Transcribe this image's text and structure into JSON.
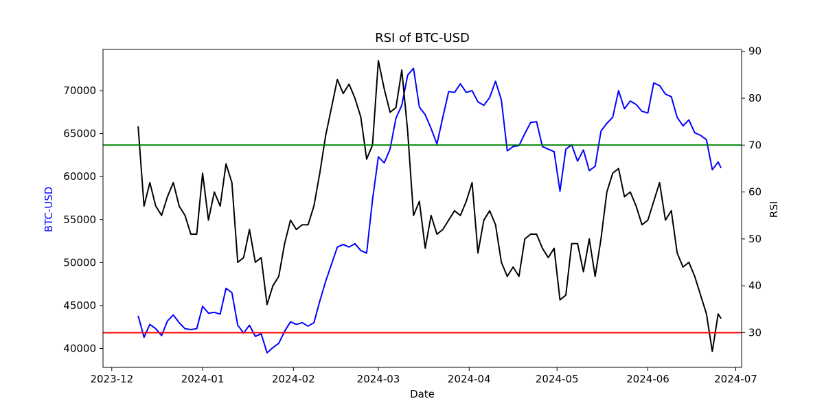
{
  "chart_data": {
    "type": "line",
    "title": "RSI of BTC-USD",
    "xlabel": "Date",
    "ylabel_left": "BTC-USD",
    "ylabel_right": "RSI",
    "x_tick_labels": [
      "2023-12",
      "2024-01",
      "2024-02",
      "2024-03",
      "2024-04",
      "2024-05",
      "2024-06",
      "2024-07"
    ],
    "x_tick_dates": [
      "2023-12-01",
      "2024-01-01",
      "2024-02-01",
      "2024-03-01",
      "2024-04-01",
      "2024-05-01",
      "2024-06-01",
      "2024-07-01"
    ],
    "xlim": [
      "2023-11-28",
      "2024-07-03"
    ],
    "left_ticks": [
      40000,
      45000,
      50000,
      55000,
      60000,
      65000,
      70000
    ],
    "left_ylim": [
      37800,
      74800
    ],
    "right_ticks": [
      30,
      40,
      50,
      60,
      70,
      80,
      90
    ],
    "right_ylim": [
      22.6,
      90.4
    ],
    "reference_lines": [
      {
        "axis": "right",
        "value": 70,
        "color": "#008000"
      },
      {
        "axis": "right",
        "value": 30,
        "color": "#ff0000"
      }
    ],
    "colors": {
      "price": "#0000ff",
      "rsi": "#000000",
      "left_axis_text": "#0000ff"
    },
    "grid": false,
    "series": [
      {
        "axis": "left",
        "color": "#0000ff",
        "dates": [
          "2023-12-10",
          "2023-12-12",
          "2023-12-14",
          "2023-12-16",
          "2023-12-18",
          "2023-12-20",
          "2023-12-22",
          "2023-12-24",
          "2023-12-26",
          "2023-12-28",
          "2023-12-30",
          "2024-01-01",
          "2024-01-03",
          "2024-01-05",
          "2024-01-07",
          "2024-01-09",
          "2024-01-11",
          "2024-01-13",
          "2024-01-15",
          "2024-01-17",
          "2024-01-19",
          "2024-01-21",
          "2024-01-23",
          "2024-01-25",
          "2024-01-27",
          "2024-01-29",
          "2024-01-31",
          "2024-02-02",
          "2024-02-04",
          "2024-02-06",
          "2024-02-08",
          "2024-02-10",
          "2024-02-12",
          "2024-02-14",
          "2024-02-16",
          "2024-02-18",
          "2024-02-20",
          "2024-02-22",
          "2024-02-24",
          "2024-02-26",
          "2024-02-28",
          "2024-03-01",
          "2024-03-03",
          "2024-03-05",
          "2024-03-07",
          "2024-03-09",
          "2024-03-11",
          "2024-03-13",
          "2024-03-15",
          "2024-03-17",
          "2024-03-19",
          "2024-03-21",
          "2024-03-23",
          "2024-03-25",
          "2024-03-27",
          "2024-03-29",
          "2024-03-31",
          "2024-04-02",
          "2024-04-04",
          "2024-04-06",
          "2024-04-08",
          "2024-04-10",
          "2024-04-12",
          "2024-04-14",
          "2024-04-16",
          "2024-04-18",
          "2024-04-20",
          "2024-04-22",
          "2024-04-24",
          "2024-04-26",
          "2024-04-28",
          "2024-04-30",
          "2024-05-02",
          "2024-05-04",
          "2024-05-06",
          "2024-05-08",
          "2024-05-10",
          "2024-05-12",
          "2024-05-14",
          "2024-05-16",
          "2024-05-18",
          "2024-05-20",
          "2024-05-22",
          "2024-05-24",
          "2024-05-26",
          "2024-05-28",
          "2024-05-30",
          "2024-06-01",
          "2024-06-03",
          "2024-06-05",
          "2024-06-07",
          "2024-06-09",
          "2024-06-11",
          "2024-06-13",
          "2024-06-15",
          "2024-06-17",
          "2024-06-19",
          "2024-06-21",
          "2024-06-23",
          "2024-06-25",
          "2024-06-26"
        ],
        "values": [
          43800,
          41300,
          42800,
          42300,
          41500,
          43200,
          43900,
          43000,
          42300,
          42200,
          42300,
          44900,
          44100,
          44200,
          44000,
          47000,
          46500,
          42700,
          41800,
          42700,
          41400,
          41700,
          39500,
          40100,
          40600,
          42000,
          43100,
          42800,
          43000,
          42600,
          43000,
          45500,
          47800,
          49800,
          51800,
          52100,
          51800,
          52200,
          51400,
          51100,
          57300,
          62300,
          61600,
          63200,
          66800,
          68300,
          71800,
          72600,
          68100,
          67200,
          65600,
          63800,
          66900,
          69900,
          69800,
          70800,
          69800,
          70000,
          68700,
          68300,
          69200,
          71100,
          68900,
          63000,
          63500,
          63600,
          65000,
          66300,
          66400,
          63500,
          63200,
          62900,
          58300,
          63200,
          63700,
          61800,
          63100,
          60700,
          61200,
          65300,
          66200,
          66900,
          70000,
          67900,
          68800,
          68400,
          67600,
          67400,
          70900,
          70600,
          69600,
          69300,
          66900,
          65900,
          66600,
          65100,
          64800,
          64300,
          60800,
          61700,
          61000
        ]
      },
      {
        "axis": "right",
        "color": "#000000",
        "dates": [
          "2023-12-10",
          "2023-12-12",
          "2023-12-14",
          "2023-12-16",
          "2023-12-18",
          "2023-12-20",
          "2023-12-22",
          "2023-12-24",
          "2023-12-26",
          "2023-12-28",
          "2023-12-30",
          "2024-01-01",
          "2024-01-03",
          "2024-01-05",
          "2024-01-07",
          "2024-01-09",
          "2024-01-11",
          "2024-01-13",
          "2024-01-15",
          "2024-01-17",
          "2024-01-19",
          "2024-01-21",
          "2024-01-23",
          "2024-01-25",
          "2024-01-27",
          "2024-01-29",
          "2024-01-31",
          "2024-02-02",
          "2024-02-04",
          "2024-02-06",
          "2024-02-08",
          "2024-02-10",
          "2024-02-12",
          "2024-02-14",
          "2024-02-16",
          "2024-02-18",
          "2024-02-20",
          "2024-02-22",
          "2024-02-24",
          "2024-02-26",
          "2024-02-28",
          "2024-03-01",
          "2024-03-03",
          "2024-03-05",
          "2024-03-07",
          "2024-03-09",
          "2024-03-11",
          "2024-03-13",
          "2024-03-15",
          "2024-03-17",
          "2024-03-19",
          "2024-03-21",
          "2024-03-23",
          "2024-03-25",
          "2024-03-27",
          "2024-03-29",
          "2024-03-31",
          "2024-04-02",
          "2024-04-04",
          "2024-04-06",
          "2024-04-08",
          "2024-04-10",
          "2024-04-12",
          "2024-04-14",
          "2024-04-16",
          "2024-04-18",
          "2024-04-20",
          "2024-04-22",
          "2024-04-24",
          "2024-04-26",
          "2024-04-28",
          "2024-04-30",
          "2024-05-02",
          "2024-05-04",
          "2024-05-06",
          "2024-05-08",
          "2024-05-10",
          "2024-05-12",
          "2024-05-14",
          "2024-05-16",
          "2024-05-18",
          "2024-05-20",
          "2024-05-22",
          "2024-05-24",
          "2024-05-26",
          "2024-05-28",
          "2024-05-30",
          "2024-06-01",
          "2024-06-03",
          "2024-06-05",
          "2024-06-07",
          "2024-06-09",
          "2024-06-11",
          "2024-06-13",
          "2024-06-15",
          "2024-06-17",
          "2024-06-19",
          "2024-06-21",
          "2024-06-23",
          "2024-06-25",
          "2024-06-26"
        ],
        "values": [
          74,
          57,
          62,
          57,
          55,
          59,
          62,
          57,
          55,
          51,
          51,
          64,
          54,
          60,
          57,
          66,
          62,
          45,
          46,
          52,
          45,
          46,
          36,
          40,
          42,
          49,
          54,
          52,
          53,
          53,
          57,
          64,
          72,
          78,
          84,
          81,
          83,
          80,
          76,
          67,
          70,
          88,
          82,
          77,
          78,
          86,
          73,
          55,
          58,
          48,
          55,
          51,
          52,
          54,
          56,
          55,
          58,
          62,
          47,
          54,
          56,
          53,
          45,
          42,
          44,
          42,
          50,
          51,
          51,
          48,
          46,
          48,
          37,
          38,
          49,
          49,
          43,
          50,
          42,
          50,
          60,
          64,
          65,
          59,
          60,
          57,
          53,
          54,
          58,
          62,
          54,
          56,
          47,
          44,
          45,
          42,
          38,
          34,
          26,
          34,
          33
        ]
      }
    ]
  }
}
